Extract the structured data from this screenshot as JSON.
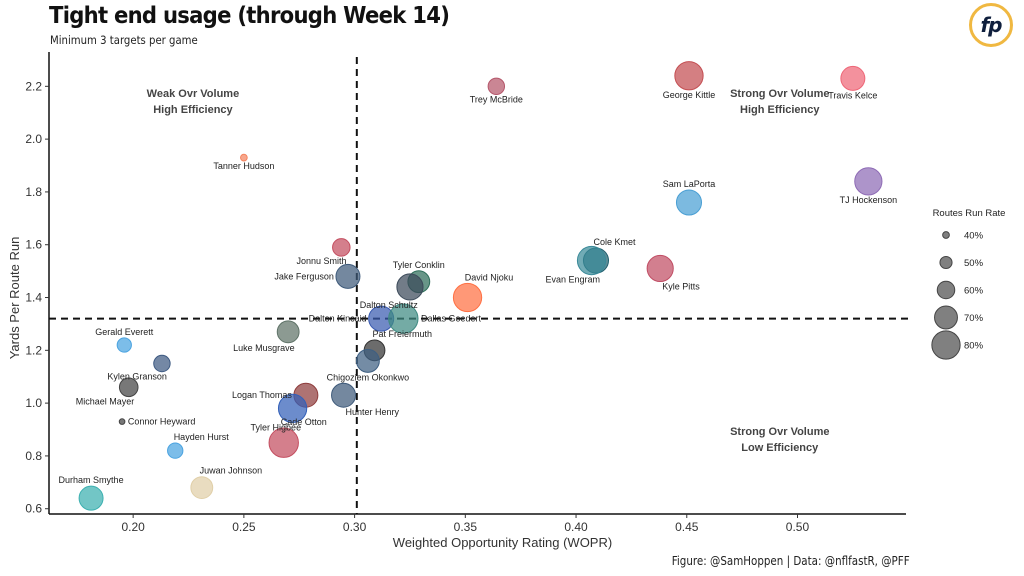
{
  "header": {
    "title": "Tight end usage (through Week 14)",
    "subtitle": "Minimum 3 targets per game",
    "logo_text": "fp",
    "caption": "Figure: @SamHoppen | Data: @nflfastR, @PFF"
  },
  "colors": {
    "logo_ring": "#f0b841",
    "logo_text": "#0f1f3d"
  },
  "chart_data": {
    "type": "scatter",
    "title": "Tight end usage (through Week 14)",
    "subtitle": "Minimum 3 targets per game",
    "xlabel": "Weighted Opportunity Rating (WOPR)",
    "ylabel": "Yards Per Route Run",
    "xlim": [
      0.162,
      0.549
    ],
    "ylim": [
      0.58,
      2.33
    ],
    "xticks": [
      0.2,
      0.25,
      0.3,
      0.35,
      0.4,
      0.45,
      0.5
    ],
    "xtick_labels": [
      "0.20",
      "0.25",
      "0.30",
      "0.35",
      "0.40",
      "0.45",
      "0.50"
    ],
    "yticks": [
      0.6,
      0.8,
      1.0,
      1.2,
      1.4,
      1.6,
      1.8,
      2.0,
      2.2
    ],
    "ytick_labels": [
      "0.6",
      "0.8",
      "1.0",
      "1.2",
      "1.4",
      "1.6",
      "1.8",
      "2.0",
      "2.2"
    ],
    "grid": false,
    "reference_lines": {
      "x": 0.301,
      "y": 1.32,
      "style": "dashed"
    },
    "quadrant_labels": [
      {
        "lines": [
          "Weak Ovr Volume",
          "High Efficiency"
        ],
        "x": 0.227,
        "y": 2.16
      },
      {
        "lines": [
          "Strong Ovr Volume",
          "High Efficiency"
        ],
        "x": 0.492,
        "y": 2.16
      },
      {
        "lines": [
          "Strong Ovr Volume",
          "Low Efficiency"
        ],
        "x": 0.492,
        "y": 0.88
      }
    ],
    "size_legend": {
      "title": "Routes Run Rate",
      "placement": "right",
      "entries": [
        {
          "label": "40%",
          "value": 0.4
        },
        {
          "label": "50%",
          "value": 0.5
        },
        {
          "label": "60%",
          "value": 0.6
        },
        {
          "label": "70%",
          "value": 0.7
        },
        {
          "label": "80%",
          "value": 0.8
        }
      ]
    },
    "points": [
      {
        "name": "Travis Kelce",
        "x": 0.525,
        "y": 2.23,
        "routes_rate": 0.72,
        "color": "#ee6677",
        "label_pos": "below"
      },
      {
        "name": "George Kittle",
        "x": 0.451,
        "y": 2.24,
        "routes_rate": 0.8,
        "color": "#c44e52",
        "label_pos": "below"
      },
      {
        "name": "Trey McBride",
        "x": 0.364,
        "y": 2.2,
        "routes_rate": 0.58,
        "color": "#b5576b",
        "label_pos": "below"
      },
      {
        "name": "Tanner Hudson",
        "x": 0.25,
        "y": 1.93,
        "routes_rate": 0.4,
        "color": "#f4845f",
        "label_pos": "below"
      },
      {
        "name": "TJ Hockenson",
        "x": 0.532,
        "y": 1.84,
        "routes_rate": 0.78,
        "color": "#8e6bb5",
        "label_pos": "below"
      },
      {
        "name": "Sam LaPorta",
        "x": 0.451,
        "y": 1.76,
        "routes_rate": 0.74,
        "color": "#4a9fd4",
        "label_pos": "above"
      },
      {
        "name": "Jonnu Smith",
        "x": 0.294,
        "y": 1.59,
        "routes_rate": 0.6,
        "color": "#c44e60",
        "label_pos": "below-left"
      },
      {
        "name": "Cole Kmet",
        "x": 0.409,
        "y": 1.54,
        "routes_rate": 0.74,
        "color": "#1f5f6e",
        "label_pos": "above-right"
      },
      {
        "name": "Evan Engram",
        "x": 0.407,
        "y": 1.54,
        "routes_rate": 0.8,
        "color": "#3a8a99",
        "label_pos": "below-left"
      },
      {
        "name": "Kyle Pitts",
        "x": 0.438,
        "y": 1.51,
        "routes_rate": 0.76,
        "color": "#c04d64",
        "label_pos": "below-right"
      },
      {
        "name": "Jake Ferguson",
        "x": 0.297,
        "y": 1.48,
        "routes_rate": 0.72,
        "color": "#3e5a7a",
        "label_pos": "left"
      },
      {
        "name": "Tyler Conklin",
        "x": 0.329,
        "y": 1.46,
        "routes_rate": 0.68,
        "color": "#2e6e5a",
        "label_pos": "above"
      },
      {
        "name": "Dalton Schultz",
        "x": 0.325,
        "y": 1.44,
        "routes_rate": 0.76,
        "color": "#3c4a5a",
        "label_pos": "below-left"
      },
      {
        "name": "David Njoku",
        "x": 0.351,
        "y": 1.4,
        "routes_rate": 0.8,
        "color": "#ff7043",
        "label_pos": "above-right"
      },
      {
        "name": "Dalton Kincaid",
        "x": 0.312,
        "y": 1.32,
        "routes_rate": 0.74,
        "color": "#3a5bb0",
        "label_pos": "left"
      },
      {
        "name": "Dallas Goedert",
        "x": 0.322,
        "y": 1.32,
        "routes_rate": 0.82,
        "color": "#3f8a82",
        "label_pos": "right"
      },
      {
        "name": "Luke Musgrave",
        "x": 0.27,
        "y": 1.27,
        "routes_rate": 0.68,
        "color": "#5f7368",
        "label_pos": "below-left"
      },
      {
        "name": "Gerald Everett",
        "x": 0.196,
        "y": 1.22,
        "routes_rate": 0.54,
        "color": "#4aa3e0",
        "label_pos": "above"
      },
      {
        "name": "Pat Freiermuth",
        "x": 0.309,
        "y": 1.2,
        "routes_rate": 0.66,
        "color": "#333333",
        "label_pos": "above-right"
      },
      {
        "name": "Chigoziem Okonkwo",
        "x": 0.306,
        "y": 1.16,
        "routes_rate": 0.7,
        "color": "#3e5f82",
        "label_pos": "below"
      },
      {
        "name": "Kylen Granson",
        "x": 0.213,
        "y": 1.15,
        "routes_rate": 0.58,
        "color": "#3e5a82",
        "label_pos": "below-left"
      },
      {
        "name": "Michael Mayer",
        "x": 0.198,
        "y": 1.06,
        "routes_rate": 0.62,
        "color": "#444444",
        "label_pos": "below-left"
      },
      {
        "name": "Logan Thomas",
        "x": 0.278,
        "y": 1.03,
        "routes_rate": 0.72,
        "color": "#8f3d3d",
        "label_pos": "left"
      },
      {
        "name": "Hunter Henry",
        "x": 0.295,
        "y": 1.03,
        "routes_rate": 0.72,
        "color": "#3e5a7a",
        "label_pos": "below-right"
      },
      {
        "name": "Tyler Higbee",
        "x": 0.272,
        "y": 0.98,
        "routes_rate": 0.8,
        "color": "#3360b8",
        "label_pos": "below-left"
      },
      {
        "name": "Connor Heyward",
        "x": 0.195,
        "y": 0.93,
        "routes_rate": 0.38,
        "color": "#444444",
        "label_pos": "right"
      },
      {
        "name": "Cade Otton",
        "x": 0.268,
        "y": 0.85,
        "routes_rate": 0.82,
        "color": "#c44e60",
        "label_pos": "above-right"
      },
      {
        "name": "Hayden Hurst",
        "x": 0.219,
        "y": 0.82,
        "routes_rate": 0.56,
        "color": "#4aa3e0",
        "label_pos": "above-right"
      },
      {
        "name": "Juwan Johnson",
        "x": 0.231,
        "y": 0.68,
        "routes_rate": 0.68,
        "color": "#e0cfa8",
        "label_pos": "above-right"
      },
      {
        "name": "Durham Smythe",
        "x": 0.181,
        "y": 0.64,
        "routes_rate": 0.72,
        "color": "#3bb0b0",
        "label_pos": "above"
      }
    ]
  }
}
